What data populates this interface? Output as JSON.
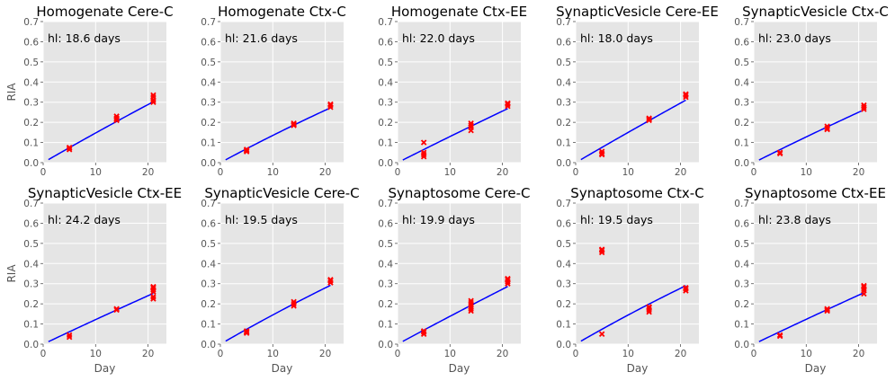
{
  "figure": {
    "xlabel": "Day",
    "ylabel": "RIA",
    "colors": {
      "panel_bg": "#E5E5E5",
      "grid": "#FFFFFF",
      "fit": "#0000FF",
      "points": "#FF0000"
    }
  },
  "chart_data": [
    {
      "type": "scatter",
      "title": "Homogenate Cere-C",
      "annotation": "hl: 18.6 days",
      "xlabel": "",
      "ylabel": "RIA",
      "xlim": [
        0,
        23.5
      ],
      "ylim": [
        0,
        0.7
      ],
      "xticks": [
        0,
        10,
        20
      ],
      "yticks": [
        0.0,
        0.1,
        0.2,
        0.3,
        0.4,
        0.5,
        0.6,
        0.7
      ],
      "grid": true,
      "fit": {
        "x_start": 1,
        "x_end": 21,
        "y_start": 0.015,
        "y_end": 0.302
      },
      "series": [
        {
          "name": "",
          "values": [
            [
              5,
              0.065
            ],
            [
              5,
              0.072
            ],
            [
              5,
              0.075
            ],
            [
              14,
              0.21
            ],
            [
              14,
              0.215
            ],
            [
              14,
              0.22
            ],
            [
              14,
              0.23
            ],
            [
              21,
              0.3
            ],
            [
              21,
              0.31
            ],
            [
              21,
              0.325
            ],
            [
              21,
              0.335
            ]
          ]
        }
      ]
    },
    {
      "type": "scatter",
      "title": "Homogenate Ctx-C",
      "annotation": "hl: 21.6 days",
      "xlabel": "",
      "ylabel": "",
      "xlim": [
        0,
        23.5
      ],
      "ylim": [
        0,
        0.7
      ],
      "xticks": [
        0,
        10,
        20
      ],
      "yticks": [
        0.0,
        0.1,
        0.2,
        0.3,
        0.4,
        0.5,
        0.6,
        0.7
      ],
      "grid": true,
      "fit": {
        "x_start": 1,
        "x_end": 21,
        "y_start": 0.014,
        "y_end": 0.272
      },
      "series": [
        {
          "name": "",
          "values": [
            [
              5,
              0.055
            ],
            [
              5,
              0.06
            ],
            [
              5,
              0.065
            ],
            [
              14,
              0.185
            ],
            [
              14,
              0.19
            ],
            [
              14,
              0.195
            ],
            [
              21,
              0.275
            ],
            [
              21,
              0.285
            ],
            [
              21,
              0.29
            ]
          ]
        }
      ]
    },
    {
      "type": "scatter",
      "title": "Homogenate Ctx-EE",
      "annotation": "hl: 22.0 days",
      "xlabel": "",
      "ylabel": "",
      "xlim": [
        0,
        23.5
      ],
      "ylim": [
        0,
        0.7
      ],
      "xticks": [
        0,
        10,
        20
      ],
      "yticks": [
        0.0,
        0.1,
        0.2,
        0.3,
        0.4,
        0.5,
        0.6,
        0.7
      ],
      "grid": true,
      "fit": {
        "x_start": 1,
        "x_end": 21,
        "y_start": 0.013,
        "y_end": 0.268
      },
      "series": [
        {
          "name": "",
          "values": [
            [
              5,
              0.03
            ],
            [
              5,
              0.04
            ],
            [
              5,
              0.05
            ],
            [
              5,
              0.1
            ],
            [
              14,
              0.16
            ],
            [
              14,
              0.175
            ],
            [
              14,
              0.185
            ],
            [
              14,
              0.195
            ],
            [
              21,
              0.28
            ],
            [
              21,
              0.29
            ],
            [
              21,
              0.295
            ]
          ]
        }
      ]
    },
    {
      "type": "scatter",
      "title": "SynapticVesicle Cere-EE",
      "annotation": "hl: 18.0 days",
      "xlabel": "",
      "ylabel": "",
      "xlim": [
        0,
        23.5
      ],
      "ylim": [
        0,
        0.7
      ],
      "xticks": [
        0,
        10,
        20
      ],
      "yticks": [
        0.0,
        0.1,
        0.2,
        0.3,
        0.4,
        0.5,
        0.6,
        0.7
      ],
      "grid": true,
      "fit": {
        "x_start": 1,
        "x_end": 21,
        "y_start": 0.015,
        "y_end": 0.31
      },
      "series": [
        {
          "name": "",
          "values": [
            [
              5,
              0.04
            ],
            [
              5,
              0.045
            ],
            [
              5,
              0.055
            ],
            [
              14,
              0.21
            ],
            [
              14,
              0.215
            ],
            [
              14,
              0.22
            ],
            [
              21,
              0.325
            ],
            [
              21,
              0.335
            ],
            [
              21,
              0.34
            ]
          ]
        }
      ]
    },
    {
      "type": "scatter",
      "title": "SynapticVesicle Ctx-C",
      "annotation": "hl: 23.0 days",
      "xlabel": "",
      "ylabel": "",
      "xlim": [
        0,
        23.5
      ],
      "ylim": [
        0,
        0.7
      ],
      "xticks": [
        0,
        10,
        20
      ],
      "yticks": [
        0.0,
        0.1,
        0.2,
        0.3,
        0.4,
        0.5,
        0.6,
        0.7
      ],
      "grid": true,
      "fit": {
        "x_start": 1,
        "x_end": 21,
        "y_start": 0.013,
        "y_end": 0.262
      },
      "series": [
        {
          "name": "",
          "values": [
            [
              5,
              0.045
            ],
            [
              5,
              0.05
            ],
            [
              14,
              0.165
            ],
            [
              14,
              0.17
            ],
            [
              14,
              0.18
            ],
            [
              21,
              0.265
            ],
            [
              21,
              0.275
            ],
            [
              21,
              0.285
            ]
          ]
        }
      ]
    },
    {
      "type": "scatter",
      "title": "SynapticVesicle Ctx-EE",
      "annotation": "hl: 24.2 days",
      "xlabel": "Day",
      "ylabel": "RIA",
      "xlim": [
        0,
        23.5
      ],
      "ylim": [
        0,
        0.7
      ],
      "xticks": [
        0,
        10,
        20
      ],
      "yticks": [
        0.0,
        0.1,
        0.2,
        0.3,
        0.4,
        0.5,
        0.6,
        0.7
      ],
      "grid": true,
      "fit": {
        "x_start": 1,
        "x_end": 21,
        "y_start": 0.012,
        "y_end": 0.252
      },
      "series": [
        {
          "name": "",
          "values": [
            [
              5,
              0.035
            ],
            [
              5,
              0.045
            ],
            [
              14,
              0.17
            ],
            [
              14,
              0.175
            ],
            [
              21,
              0.225
            ],
            [
              21,
              0.235
            ],
            [
              21,
              0.26
            ],
            [
              21,
              0.27
            ],
            [
              21,
              0.28
            ],
            [
              21,
              0.285
            ]
          ]
        }
      ]
    },
    {
      "type": "scatter",
      "title": "SynapticVesicle Cere-C",
      "annotation": "hl: 19.5 days",
      "xlabel": "Day",
      "ylabel": "",
      "xlim": [
        0,
        23.5
      ],
      "ylim": [
        0,
        0.7
      ],
      "xticks": [
        0,
        10,
        20
      ],
      "yticks": [
        0.0,
        0.1,
        0.2,
        0.3,
        0.4,
        0.5,
        0.6,
        0.7
      ],
      "grid": true,
      "fit": {
        "x_start": 1,
        "x_end": 21,
        "y_start": 0.015,
        "y_end": 0.292
      },
      "series": [
        {
          "name": "",
          "values": [
            [
              5,
              0.055
            ],
            [
              5,
              0.06
            ],
            [
              5,
              0.065
            ],
            [
              14,
              0.19
            ],
            [
              14,
              0.2
            ],
            [
              14,
              0.21
            ],
            [
              21,
              0.305
            ],
            [
              21,
              0.315
            ],
            [
              21,
              0.32
            ]
          ]
        }
      ]
    },
    {
      "type": "scatter",
      "title": "Synaptosome Cere-C",
      "annotation": "hl: 19.9 days",
      "xlabel": "Day",
      "ylabel": "",
      "xlim": [
        0,
        23.5
      ],
      "ylim": [
        0,
        0.7
      ],
      "xticks": [
        0,
        10,
        20
      ],
      "yticks": [
        0.0,
        0.1,
        0.2,
        0.3,
        0.4,
        0.5,
        0.6,
        0.7
      ],
      "grid": true,
      "fit": {
        "x_start": 1,
        "x_end": 21,
        "y_start": 0.014,
        "y_end": 0.286
      },
      "series": [
        {
          "name": "",
          "values": [
            [
              5,
              0.05
            ],
            [
              5,
              0.06
            ],
            [
              5,
              0.065
            ],
            [
              14,
              0.165
            ],
            [
              14,
              0.175
            ],
            [
              14,
              0.185
            ],
            [
              14,
              0.195
            ],
            [
              14,
              0.205
            ],
            [
              14,
              0.215
            ],
            [
              21,
              0.3
            ],
            [
              21,
              0.31
            ],
            [
              21,
              0.32
            ],
            [
              21,
              0.325
            ]
          ]
        }
      ]
    },
    {
      "type": "scatter",
      "title": "Synaptosome Ctx-C",
      "annotation": "hl: 19.5 days",
      "xlabel": "Day",
      "ylabel": "",
      "xlim": [
        0,
        23.5
      ],
      "ylim": [
        0,
        0.7
      ],
      "xticks": [
        0,
        10,
        20
      ],
      "yticks": [
        0.0,
        0.1,
        0.2,
        0.3,
        0.4,
        0.5,
        0.6,
        0.7
      ],
      "grid": true,
      "fit": {
        "x_start": 1,
        "x_end": 21,
        "y_start": 0.015,
        "y_end": 0.29
      },
      "series": [
        {
          "name": "",
          "values": [
            [
              5,
              0.05
            ],
            [
              5,
              0.455
            ],
            [
              5,
              0.465
            ],
            [
              5,
              0.47
            ],
            [
              14,
              0.16
            ],
            [
              14,
              0.17
            ],
            [
              14,
              0.18
            ],
            [
              14,
              0.185
            ],
            [
              21,
              0.265
            ],
            [
              21,
              0.275
            ],
            [
              21,
              0.28
            ]
          ]
        }
      ]
    },
    {
      "type": "scatter",
      "title": "Synaptosome Ctx-EE",
      "annotation": "hl: 23.8 days",
      "xlabel": "Day",
      "ylabel": "",
      "xlim": [
        0,
        23.5
      ],
      "ylim": [
        0,
        0.7
      ],
      "xticks": [
        0,
        10,
        20
      ],
      "yticks": [
        0.0,
        0.1,
        0.2,
        0.3,
        0.4,
        0.5,
        0.6,
        0.7
      ],
      "grid": true,
      "fit": {
        "x_start": 1,
        "x_end": 21,
        "y_start": 0.012,
        "y_end": 0.255
      },
      "series": [
        {
          "name": "",
          "values": [
            [
              5,
              0.04
            ],
            [
              5,
              0.045
            ],
            [
              14,
              0.165
            ],
            [
              14,
              0.17
            ],
            [
              14,
              0.175
            ],
            [
              21,
              0.25
            ],
            [
              21,
              0.265
            ],
            [
              21,
              0.275
            ],
            [
              21,
              0.285
            ],
            [
              21,
              0.29
            ]
          ]
        }
      ]
    }
  ]
}
